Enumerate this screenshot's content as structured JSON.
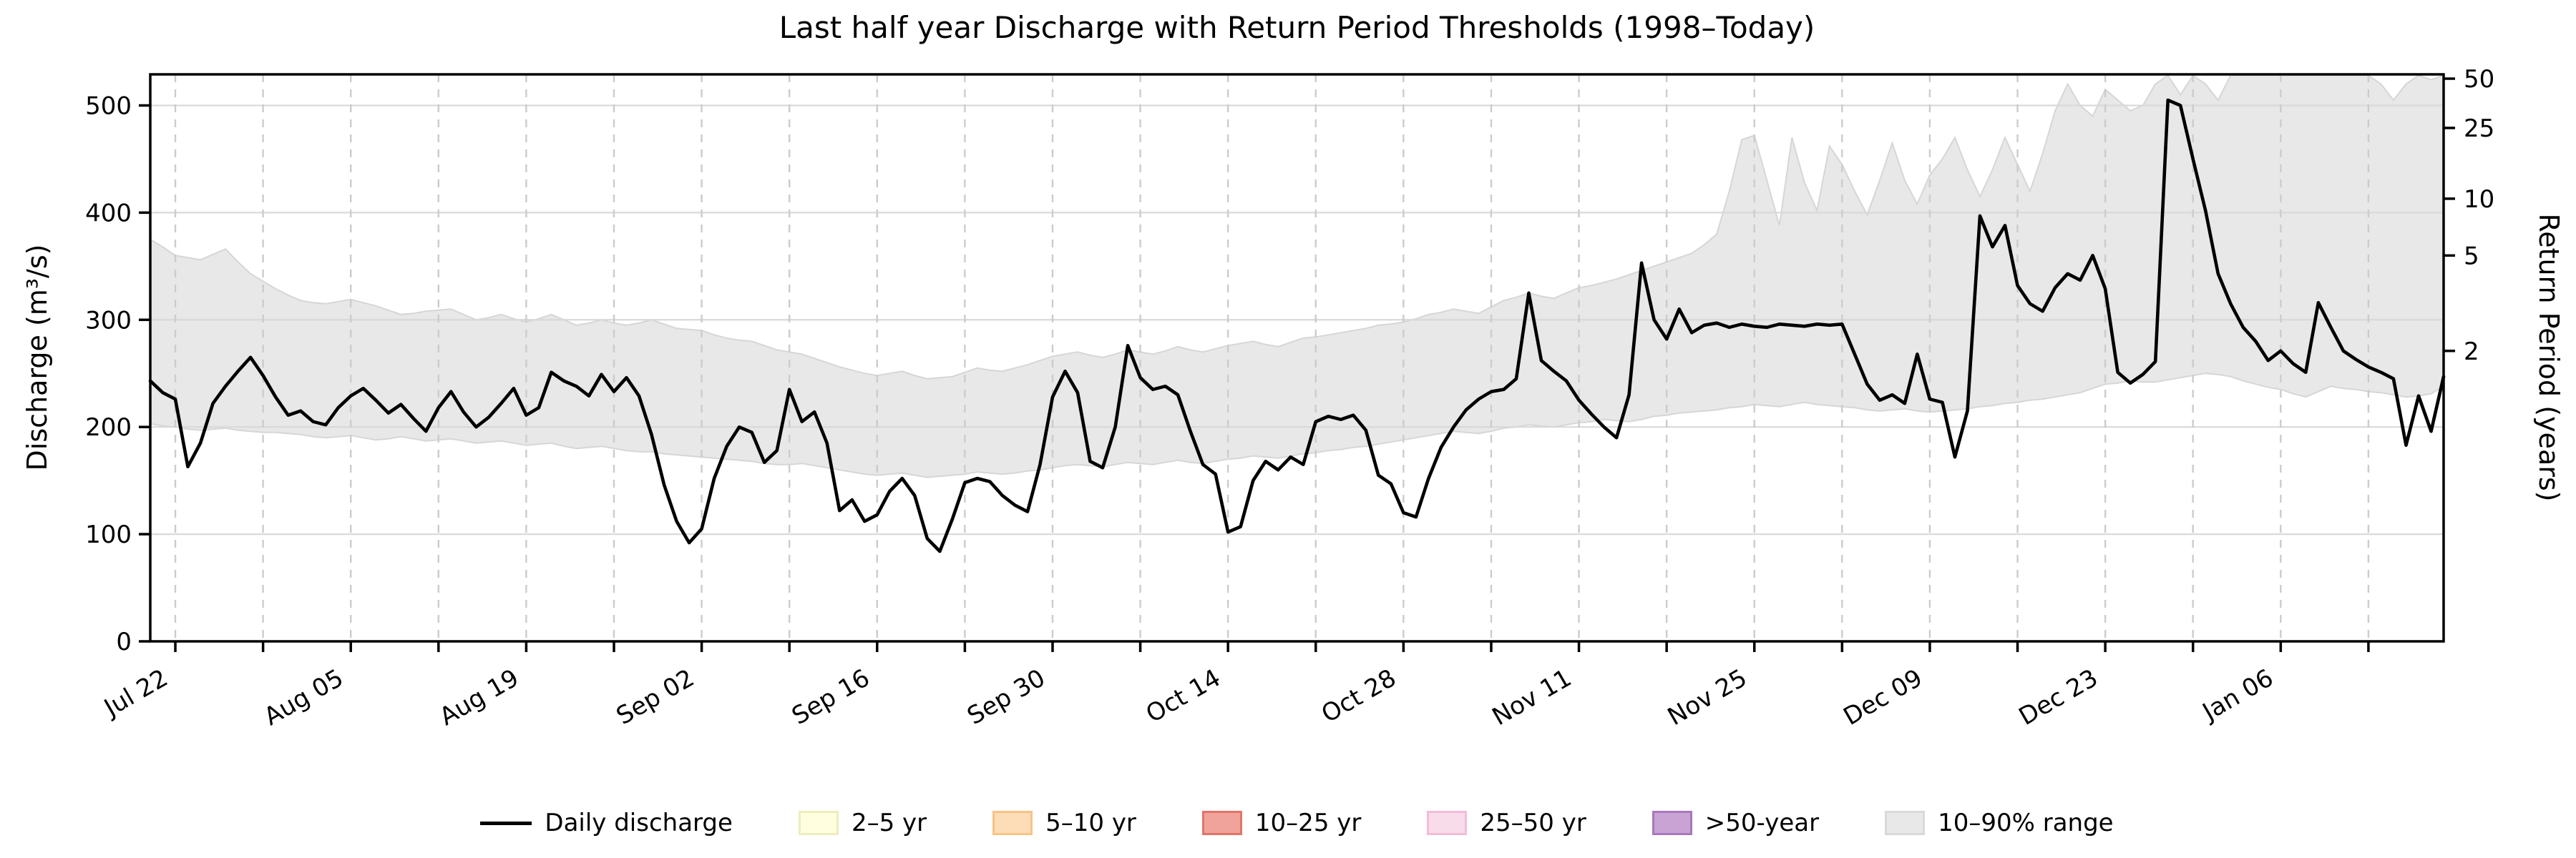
{
  "title": "Last half year Discharge with Return Period Thresholds (1998–Today)",
  "chart_data": {
    "type": "line",
    "title": "Last half year Discharge with Return Period Thresholds (1998–Today)",
    "x_axis": {
      "start": "Jul 20",
      "end": "Jan 19",
      "n_points": 184,
      "tick_labels": [
        "Jul 22",
        "Aug 05",
        "Aug 19",
        "Sep 02",
        "Sep 16",
        "Sep 30",
        "Oct 14",
        "Oct 28",
        "Nov 11",
        "Nov 25",
        "Dec 09",
        "Dec 23",
        "Jan 06"
      ],
      "major_tick_days": [
        2,
        16,
        30,
        44,
        58,
        72,
        86,
        100,
        114,
        128,
        142,
        156,
        170
      ],
      "minor_tick_days": [
        9,
        23,
        37,
        51,
        65,
        79,
        93,
        107,
        121,
        135,
        149,
        163,
        177
      ],
      "grid": "dashed vertical at weekly ticks"
    },
    "y_left": {
      "label": "Discharge (m³/s)",
      "ticks": [
        0,
        100,
        200,
        300,
        400,
        500
      ],
      "lim": [
        0,
        529
      ],
      "grid": "solid horizontal at 100-unit ticks"
    },
    "y_right": {
      "label": "Return Period (years)",
      "ticks": [
        {
          "label": "2",
          "discharge_value": 271
        },
        {
          "label": "5",
          "discharge_value": 360
        },
        {
          "label": "10",
          "discharge_value": 413
        },
        {
          "label": "25",
          "discharge_value": 479
        },
        {
          "label": "50",
          "discharge_value": 525
        }
      ]
    },
    "series": {
      "daily_discharge": [
        243,
        232,
        226,
        163,
        185,
        222,
        238,
        252,
        265,
        248,
        228,
        211,
        215,
        205,
        202,
        218,
        229,
        236,
        225,
        213,
        221,
        208,
        196,
        218,
        233,
        214,
        200,
        209,
        222,
        236,
        211,
        218,
        251,
        243,
        238,
        229,
        249,
        233,
        246,
        229,
        193,
        146,
        112,
        92,
        105,
        152,
        182,
        200,
        195,
        167,
        178,
        235,
        205,
        214,
        185,
        122,
        132,
        112,
        118,
        140,
        152,
        136,
        96,
        84,
        114,
        148,
        152,
        149,
        136,
        127,
        121,
        165,
        228,
        252,
        232,
        168,
        162,
        200,
        276,
        246,
        235,
        238,
        230,
        196,
        165,
        156,
        102,
        107,
        150,
        168,
        160,
        172,
        165,
        205,
        210,
        207,
        211,
        197,
        155,
        147,
        120,
        116,
        152,
        181,
        200,
        216,
        226,
        233,
        235,
        245,
        325,
        262,
        252,
        243,
        225,
        212,
        200,
        190,
        230,
        353,
        300,
        282,
        310,
        288,
        295,
        297,
        293,
        296,
        294,
        293,
        296,
        295,
        294,
        296,
        295,
        296,
        268,
        240,
        225,
        230,
        222,
        268,
        226,
        223,
        172,
        215,
        397,
        368,
        388,
        332,
        315,
        308,
        330,
        343,
        337,
        360,
        329,
        251,
        241,
        249,
        261,
        505,
        500,
        450,
        402,
        343,
        315,
        293,
        280,
        262,
        271,
        259,
        251,
        316,
        293,
        271,
        263,
        256,
        251,
        245,
        183,
        229,
        196,
        247
      ],
      "band_lower": [
        203,
        201,
        200,
        198,
        197,
        198,
        199,
        197,
        196,
        195,
        195,
        194,
        193,
        191,
        190,
        191,
        192,
        190,
        188,
        189,
        191,
        189,
        187,
        188,
        189,
        187,
        185,
        186,
        187,
        185,
        183,
        184,
        185,
        182,
        180,
        181,
        182,
        180,
        178,
        177,
        177,
        175,
        174,
        173,
        172,
        171,
        170,
        169,
        168,
        166,
        165,
        165,
        166,
        164,
        162,
        160,
        158,
        156,
        155,
        156,
        157,
        155,
        153,
        154,
        155,
        156,
        158,
        157,
        156,
        157,
        159,
        160,
        162,
        164,
        165,
        164,
        163,
        165,
        167,
        166,
        165,
        167,
        169,
        167,
        166,
        168,
        170,
        171,
        173,
        172,
        171,
        173,
        175,
        176,
        178,
        179,
        181,
        182,
        184,
        186,
        188,
        190,
        192,
        194,
        196,
        195,
        194,
        196,
        199,
        200,
        202,
        201,
        200,
        202,
        204,
        205,
        207,
        206,
        205,
        207,
        210,
        211,
        213,
        214,
        215,
        216,
        218,
        219,
        221,
        220,
        219,
        221,
        223,
        221,
        220,
        219,
        218,
        216,
        215,
        216,
        217,
        215,
        214,
        215,
        216,
        217,
        219,
        220,
        222,
        223,
        225,
        226,
        228,
        230,
        232,
        236,
        240,
        241,
        243,
        242,
        242,
        244,
        246,
        248,
        250,
        249,
        247,
        243,
        240,
        237,
        235,
        231,
        228,
        233,
        238,
        236,
        235,
        233,
        232,
        230,
        228,
        229,
        231,
        238
      ],
      "band_upper": [
        375,
        368,
        360,
        358,
        356,
        361,
        366,
        354,
        343,
        336,
        329,
        323,
        318,
        316,
        315,
        317,
        319,
        316,
        313,
        309,
        305,
        306,
        308,
        309,
        310,
        305,
        300,
        302,
        305,
        301,
        298,
        301,
        305,
        300,
        295,
        297,
        300,
        297,
        295,
        297,
        300,
        296,
        292,
        291,
        290,
        286,
        283,
        281,
        280,
        276,
        272,
        270,
        268,
        264,
        260,
        256,
        253,
        250,
        248,
        250,
        252,
        248,
        245,
        246,
        247,
        251,
        255,
        253,
        252,
        255,
        258,
        262,
        266,
        268,
        270,
        267,
        265,
        268,
        272,
        270,
        268,
        271,
        275,
        272,
        270,
        273,
        276,
        278,
        280,
        277,
        275,
        279,
        283,
        284,
        286,
        288,
        290,
        292,
        295,
        296,
        298,
        301,
        305,
        307,
        310,
        308,
        306,
        312,
        318,
        321,
        325,
        322,
        320,
        325,
        330,
        332,
        335,
        338,
        342,
        346,
        350,
        354,
        358,
        362,
        370,
        380,
        420,
        468,
        472,
        430,
        388,
        470,
        428,
        402,
        462,
        445,
        420,
        398,
        430,
        465,
        430,
        408,
        435,
        450,
        470,
        440,
        415,
        440,
        470,
        445,
        420,
        455,
        495,
        520,
        500,
        490,
        515,
        505,
        495,
        500,
        520,
        528,
        510,
        528,
        520,
        505,
        528,
        528,
        528,
        528,
        528,
        528,
        528,
        528,
        528,
        528,
        528,
        528,
        520,
        505,
        520,
        528,
        524,
        528
      ]
    },
    "legend": [
      {
        "label": "Daily discharge",
        "type": "line",
        "fill": "#000000",
        "edge": "#000000"
      },
      {
        "label": "2–5 yr",
        "type": "patch",
        "fill": "#FFFFE0",
        "edge": "#EDEDBE"
      },
      {
        "label": "5–10 yr",
        "type": "patch",
        "fill": "#FDDDB8",
        "edge": "#F9C286"
      },
      {
        "label": "10–25 yr",
        "type": "patch",
        "fill": "#F0A39A",
        "edge": "#E1746A"
      },
      {
        "label": "25–50 yr",
        "type": "patch",
        "fill": "#F9DCEA",
        "edge": "#F2BCD8"
      },
      {
        "label": ">50-year",
        "type": "patch",
        "fill": "#C8A3D4",
        "edge": "#A878BC"
      },
      {
        "label": "10–90% range",
        "type": "patch",
        "fill": "#E8E8E8",
        "edge": "#D9D9D9"
      }
    ],
    "colors": {
      "line": "#000000",
      "band_fill": "#E8E8E8",
      "band_edge": "#D6D6D6",
      "grid_h": "#D9D9D9",
      "grid_v": "#CCCCCC",
      "spine": "#000000"
    }
  }
}
